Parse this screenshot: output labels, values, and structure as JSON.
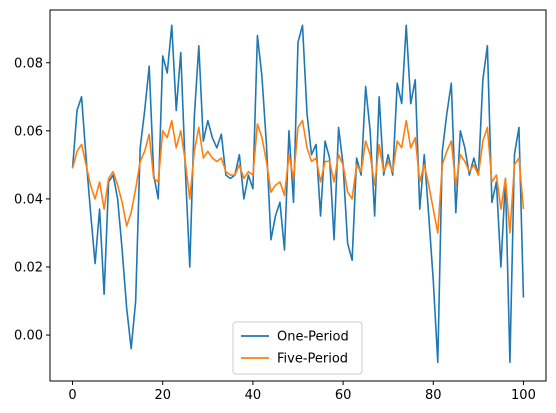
{
  "chart_data": {
    "type": "line",
    "title": "",
    "xlabel": "",
    "ylabel": "",
    "xlim": [
      -5,
      105
    ],
    "ylim": [
      -0.0135,
      0.0955
    ],
    "grid": false,
    "legend_position": "lower-center",
    "xticks": [
      0,
      20,
      40,
      60,
      80,
      100
    ],
    "yticks": [
      0.0,
      0.02,
      0.04,
      0.06,
      0.08
    ],
    "xtick_labels": [
      "0",
      "20",
      "40",
      "60",
      "80",
      "100"
    ],
    "ytick_labels": [
      "0.00",
      "0.02",
      "0.04",
      "0.06",
      "0.08"
    ],
    "x": [
      0,
      1,
      2,
      3,
      4,
      5,
      6,
      7,
      8,
      9,
      10,
      11,
      12,
      13,
      14,
      15,
      16,
      17,
      18,
      19,
      20,
      21,
      22,
      23,
      24,
      25,
      26,
      27,
      28,
      29,
      30,
      31,
      32,
      33,
      34,
      35,
      36,
      37,
      38,
      39,
      40,
      41,
      42,
      43,
      44,
      45,
      46,
      47,
      48,
      49,
      50,
      51,
      52,
      53,
      54,
      55,
      56,
      57,
      58,
      59,
      60,
      61,
      62,
      63,
      64,
      65,
      66,
      67,
      68,
      69,
      70,
      71,
      72,
      73,
      74,
      75,
      76,
      77,
      78,
      79,
      80,
      81,
      82,
      83,
      84,
      85,
      86,
      87,
      88,
      89,
      90,
      91,
      92,
      93,
      94,
      95,
      96,
      97,
      98,
      99,
      100
    ],
    "series": [
      {
        "name": "One-Period",
        "color": "#1f77b4",
        "values": [
          0.049,
          0.066,
          0.07,
          0.052,
          0.036,
          0.021,
          0.037,
          0.012,
          0.045,
          0.047,
          0.04,
          0.025,
          0.008,
          -0.004,
          0.01,
          0.055,
          0.066,
          0.079,
          0.047,
          0.04,
          0.082,
          0.077,
          0.091,
          0.066,
          0.083,
          0.049,
          0.02,
          0.064,
          0.085,
          0.057,
          0.063,
          0.058,
          0.055,
          0.059,
          0.047,
          0.046,
          0.047,
          0.053,
          0.04,
          0.047,
          0.043,
          0.088,
          0.076,
          0.056,
          0.028,
          0.035,
          0.039,
          0.025,
          0.06,
          0.039,
          0.086,
          0.091,
          0.065,
          0.053,
          0.056,
          0.035,
          0.057,
          0.052,
          0.028,
          0.061,
          0.05,
          0.027,
          0.022,
          0.052,
          0.047,
          0.073,
          0.06,
          0.035,
          0.07,
          0.047,
          0.053,
          0.047,
          0.074,
          0.068,
          0.091,
          0.068,
          0.075,
          0.037,
          0.053,
          0.035,
          0.016,
          -0.008,
          0.054,
          0.065,
          0.074,
          0.036,
          0.06,
          0.055,
          0.047,
          0.052,
          0.047,
          0.075,
          0.085,
          0.039,
          0.045,
          0.02,
          0.046,
          -0.008,
          0.053,
          0.061,
          0.011
        ]
      },
      {
        "name": "Five-Period",
        "color": "#ff7f0e",
        "values": [
          0.049,
          0.054,
          0.056,
          0.05,
          0.044,
          0.04,
          0.045,
          0.037,
          0.046,
          0.048,
          0.044,
          0.039,
          0.032,
          0.036,
          0.043,
          0.051,
          0.054,
          0.059,
          0.046,
          0.045,
          0.06,
          0.058,
          0.063,
          0.055,
          0.06,
          0.051,
          0.04,
          0.054,
          0.061,
          0.052,
          0.054,
          0.052,
          0.051,
          0.052,
          0.048,
          0.047,
          0.047,
          0.05,
          0.046,
          0.048,
          0.047,
          0.062,
          0.058,
          0.051,
          0.042,
          0.044,
          0.045,
          0.041,
          0.053,
          0.046,
          0.061,
          0.063,
          0.055,
          0.051,
          0.052,
          0.045,
          0.051,
          0.051,
          0.045,
          0.053,
          0.05,
          0.042,
          0.04,
          0.05,
          0.048,
          0.057,
          0.053,
          0.044,
          0.056,
          0.048,
          0.051,
          0.048,
          0.057,
          0.055,
          0.063,
          0.055,
          0.058,
          0.045,
          0.05,
          0.044,
          0.037,
          0.03,
          0.05,
          0.054,
          0.057,
          0.044,
          0.053,
          0.051,
          0.048,
          0.05,
          0.047,
          0.057,
          0.061,
          0.045,
          0.047,
          0.037,
          0.046,
          0.03,
          0.05,
          0.052,
          0.037
        ]
      }
    ]
  }
}
